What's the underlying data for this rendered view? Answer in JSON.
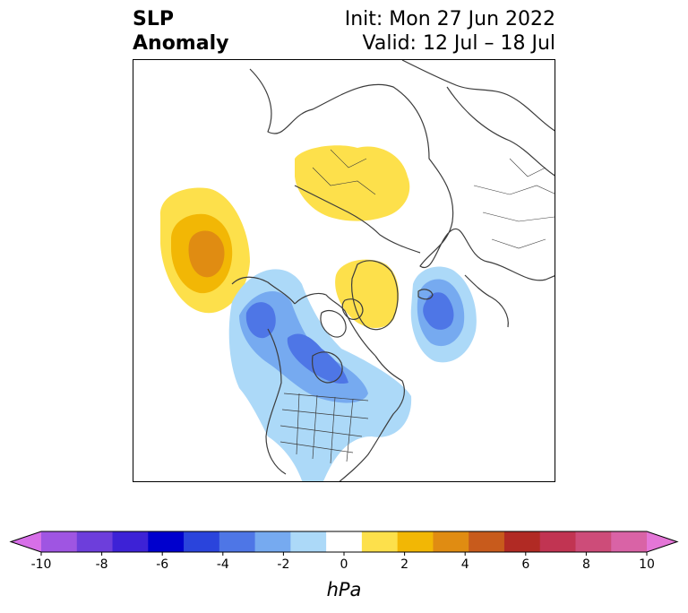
{
  "header": {
    "title_line1": "SLP",
    "title_line2": "Anomaly",
    "init": "Init: Mon 27 Jun 2022",
    "valid": "Valid: 12 Jul – 18 Jul"
  },
  "colorbar": {
    "unit": "hPa",
    "ticks": [
      "-10",
      "-8",
      "-6",
      "-4",
      "-2",
      "0",
      "2",
      "4",
      "6",
      "8",
      "10"
    ],
    "colors": [
      "#d76fe8",
      "#9f55e2",
      "#6d3edb",
      "#3d22d6",
      "#0000cd",
      "#2a44dc",
      "#4e76e6",
      "#76aaf0",
      "#acd9f8",
      "#ffffff",
      "#fde04b",
      "#f2b705",
      "#e08c12",
      "#c85b1c",
      "#b12a24",
      "#c13452",
      "#cd4c79",
      "#d963a6",
      "#e476d7"
    ]
  },
  "map": {
    "projection": "north-polar-stereographic",
    "coastline_color": "#3c3c3c",
    "anomaly_features": [
      {
        "name": "north-pacific-high",
        "sign": "positive",
        "peak_hpa": 4
      },
      {
        "name": "central-arctic-high",
        "sign": "positive",
        "peak_hpa": 2
      },
      {
        "name": "greenland-high",
        "sign": "positive",
        "peak_hpa": 2
      },
      {
        "name": "alaska-low",
        "sign": "negative",
        "peak_hpa": -4
      },
      {
        "name": "canada-us-trough",
        "sign": "negative",
        "peak_hpa": -3
      },
      {
        "name": "north-atlantic-low",
        "sign": "negative",
        "peak_hpa": -4
      }
    ]
  }
}
